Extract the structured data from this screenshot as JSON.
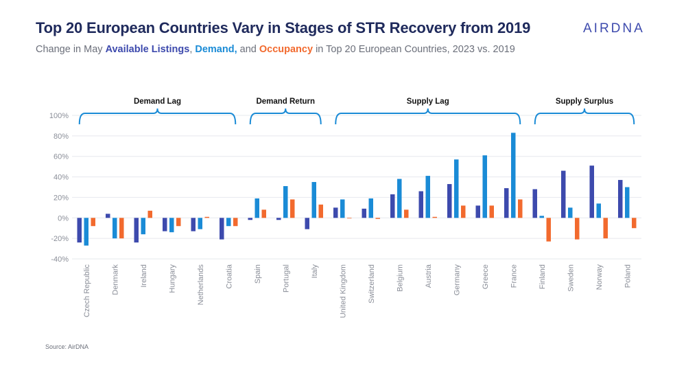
{
  "header": {
    "title": "Top 20 European Countries Vary in Stages of STR Recovery from 2019",
    "subtitle_prefix": "Change in May ",
    "subtitle_s1": "Available Listings",
    "subtitle_sep1": ", ",
    "subtitle_s2": "Demand,",
    "subtitle_sep2": " and ",
    "subtitle_s3": "Occupancy",
    "subtitle_suffix": " in Top 20 European Countries, 2023 vs. 2019",
    "logo": "AIRDNA"
  },
  "footer": {
    "source": "Source: AirDNA"
  },
  "colors": {
    "available_listings": "#3d4aad",
    "demand": "#1a8bd6",
    "occupancy": "#f26a2e",
    "bracket": "#1a8bd6",
    "grid": "#e6e8ee",
    "tick_text": "#8a8e98"
  },
  "chart_data": {
    "type": "bar",
    "ylim": [
      -40,
      100
    ],
    "yticks": [
      -40,
      -20,
      0,
      20,
      40,
      60,
      80,
      100
    ],
    "ytick_labels": [
      "-40%",
      "-20%",
      "0%",
      "20%",
      "40%",
      "60%",
      "80%",
      "100%"
    ],
    "grid": true,
    "categories": [
      "Czech Republic",
      "Denmark",
      "Ireland",
      "Hungary",
      "Netherlands",
      "Croatia",
      "Spain",
      "Portugal",
      "Italy",
      "United Kingdom",
      "Switzerland",
      "Belgium",
      "Austria",
      "Germany",
      "Greece",
      "France",
      "Finland",
      "Sweden",
      "Norway",
      "Poland"
    ],
    "series": [
      {
        "name": "Available Listings",
        "values": [
          -24,
          4,
          -24,
          -13,
          -13,
          -21,
          -2,
          -2,
          -11,
          10,
          9,
          23,
          26,
          33,
          12,
          29,
          28,
          46,
          51,
          37
        ]
      },
      {
        "name": "Demand",
        "values": [
          -27,
          -20,
          -16,
          -14,
          -11,
          -8,
          19,
          31,
          35,
          18,
          19,
          38,
          41,
          57,
          61,
          83,
          2,
          10,
          14,
          30
        ]
      },
      {
        "name": "Occupancy",
        "values": [
          -8,
          -20,
          7,
          -8,
          1,
          -8,
          8,
          18,
          13,
          0,
          -1,
          8,
          1,
          12,
          12,
          18,
          -23,
          -21,
          -20,
          -10
        ]
      }
    ],
    "groups": [
      {
        "label": "Demand Lag",
        "from": 0,
        "to": 5
      },
      {
        "label": "Demand Return",
        "from": 6,
        "to": 8
      },
      {
        "label": "Supply Lag",
        "from": 9,
        "to": 15
      },
      {
        "label": "Supply Surplus",
        "from": 16,
        "to": 19
      }
    ]
  }
}
